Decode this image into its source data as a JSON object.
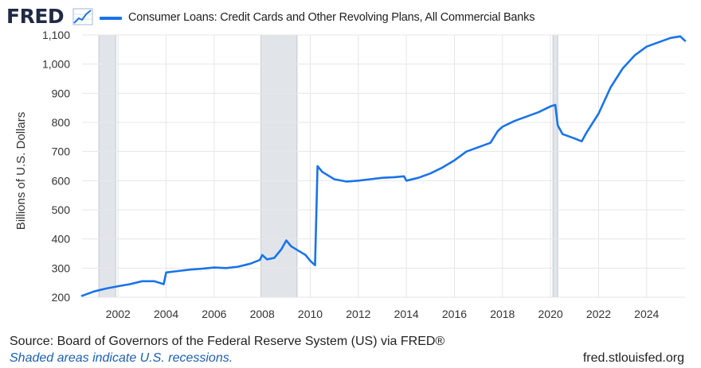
{
  "header": {
    "logo_text": "FRED",
    "logo_icon": "trend-line-icon",
    "series_label": "Consumer Loans: Credit Cards and Other Revolving Plans, All Commercial Banks"
  },
  "colors": {
    "line": "#1a73e8",
    "recession": "#e1e5ea",
    "grid": "#e6e6e6",
    "logo": "#1f2a44",
    "note": "#1a5fb4"
  },
  "footer": {
    "source": "Source: Board of Governors of the Federal Reserve System (US) via FRED®",
    "note": "Shaded areas indicate U.S. recessions.",
    "site": "fred.stlouisfed.org"
  },
  "chart_data": {
    "type": "line",
    "title": "",
    "xlabel": "",
    "ylabel": "Billions of U.S. Dollars",
    "xlim": [
      2000.5,
      2025.6
    ],
    "ylim": [
      200,
      1100
    ],
    "yticks": [
      200,
      300,
      400,
      500,
      600,
      700,
      800,
      900,
      1000,
      1100
    ],
    "ytick_labels": [
      "200",
      "300",
      "400",
      "500",
      "600",
      "700",
      "800",
      "900",
      "1,000",
      "1,100"
    ],
    "xticks": [
      2002,
      2004,
      2006,
      2008,
      2010,
      2012,
      2014,
      2016,
      2018,
      2020,
      2022,
      2024
    ],
    "xtick_labels": [
      "2002",
      "2004",
      "2006",
      "2008",
      "2010",
      "2012",
      "2014",
      "2016",
      "2018",
      "2020",
      "2022",
      "2024"
    ],
    "grid": true,
    "legend": "top-left",
    "recessions": [
      [
        2001.2,
        2001.9
      ],
      [
        2007.95,
        2009.45
      ],
      [
        2020.1,
        2020.3
      ]
    ],
    "series": [
      {
        "name": "Consumer Loans: Credit Cards and Other Revolving Plans, All Commercial Banks",
        "x": [
          2000.5,
          2001.0,
          2001.5,
          2002.0,
          2002.5,
          2003.0,
          2003.5,
          2003.9,
          2004.0,
          2004.5,
          2005.0,
          2005.5,
          2006.0,
          2006.5,
          2007.0,
          2007.5,
          2007.9,
          2008.0,
          2008.2,
          2008.5,
          2008.8,
          2009.0,
          2009.2,
          2009.5,
          2009.8,
          2010.0,
          2010.2,
          2010.3,
          2010.5,
          2011.0,
          2011.5,
          2012.0,
          2012.5,
          2013.0,
          2013.5,
          2013.9,
          2014.0,
          2014.5,
          2015.0,
          2015.5,
          2016.0,
          2016.5,
          2017.0,
          2017.5,
          2017.8,
          2018.0,
          2018.5,
          2019.0,
          2019.5,
          2020.0,
          2020.2,
          2020.3,
          2020.5,
          2021.0,
          2021.3,
          2021.5,
          2022.0,
          2022.5,
          2023.0,
          2023.5,
          2024.0,
          2024.5,
          2025.0,
          2025.4,
          2025.6
        ],
        "values": [
          205,
          220,
          230,
          238,
          245,
          255,
          255,
          245,
          285,
          290,
          295,
          298,
          302,
          300,
          305,
          315,
          328,
          345,
          330,
          335,
          365,
          395,
          375,
          360,
          345,
          325,
          310,
          650,
          630,
          605,
          597,
          600,
          605,
          610,
          612,
          615,
          600,
          610,
          625,
          645,
          670,
          700,
          715,
          730,
          770,
          785,
          805,
          820,
          835,
          855,
          860,
          790,
          760,
          745,
          735,
          765,
          830,
          920,
          985,
          1030,
          1060,
          1075,
          1090,
          1095,
          1080
        ]
      }
    ]
  }
}
